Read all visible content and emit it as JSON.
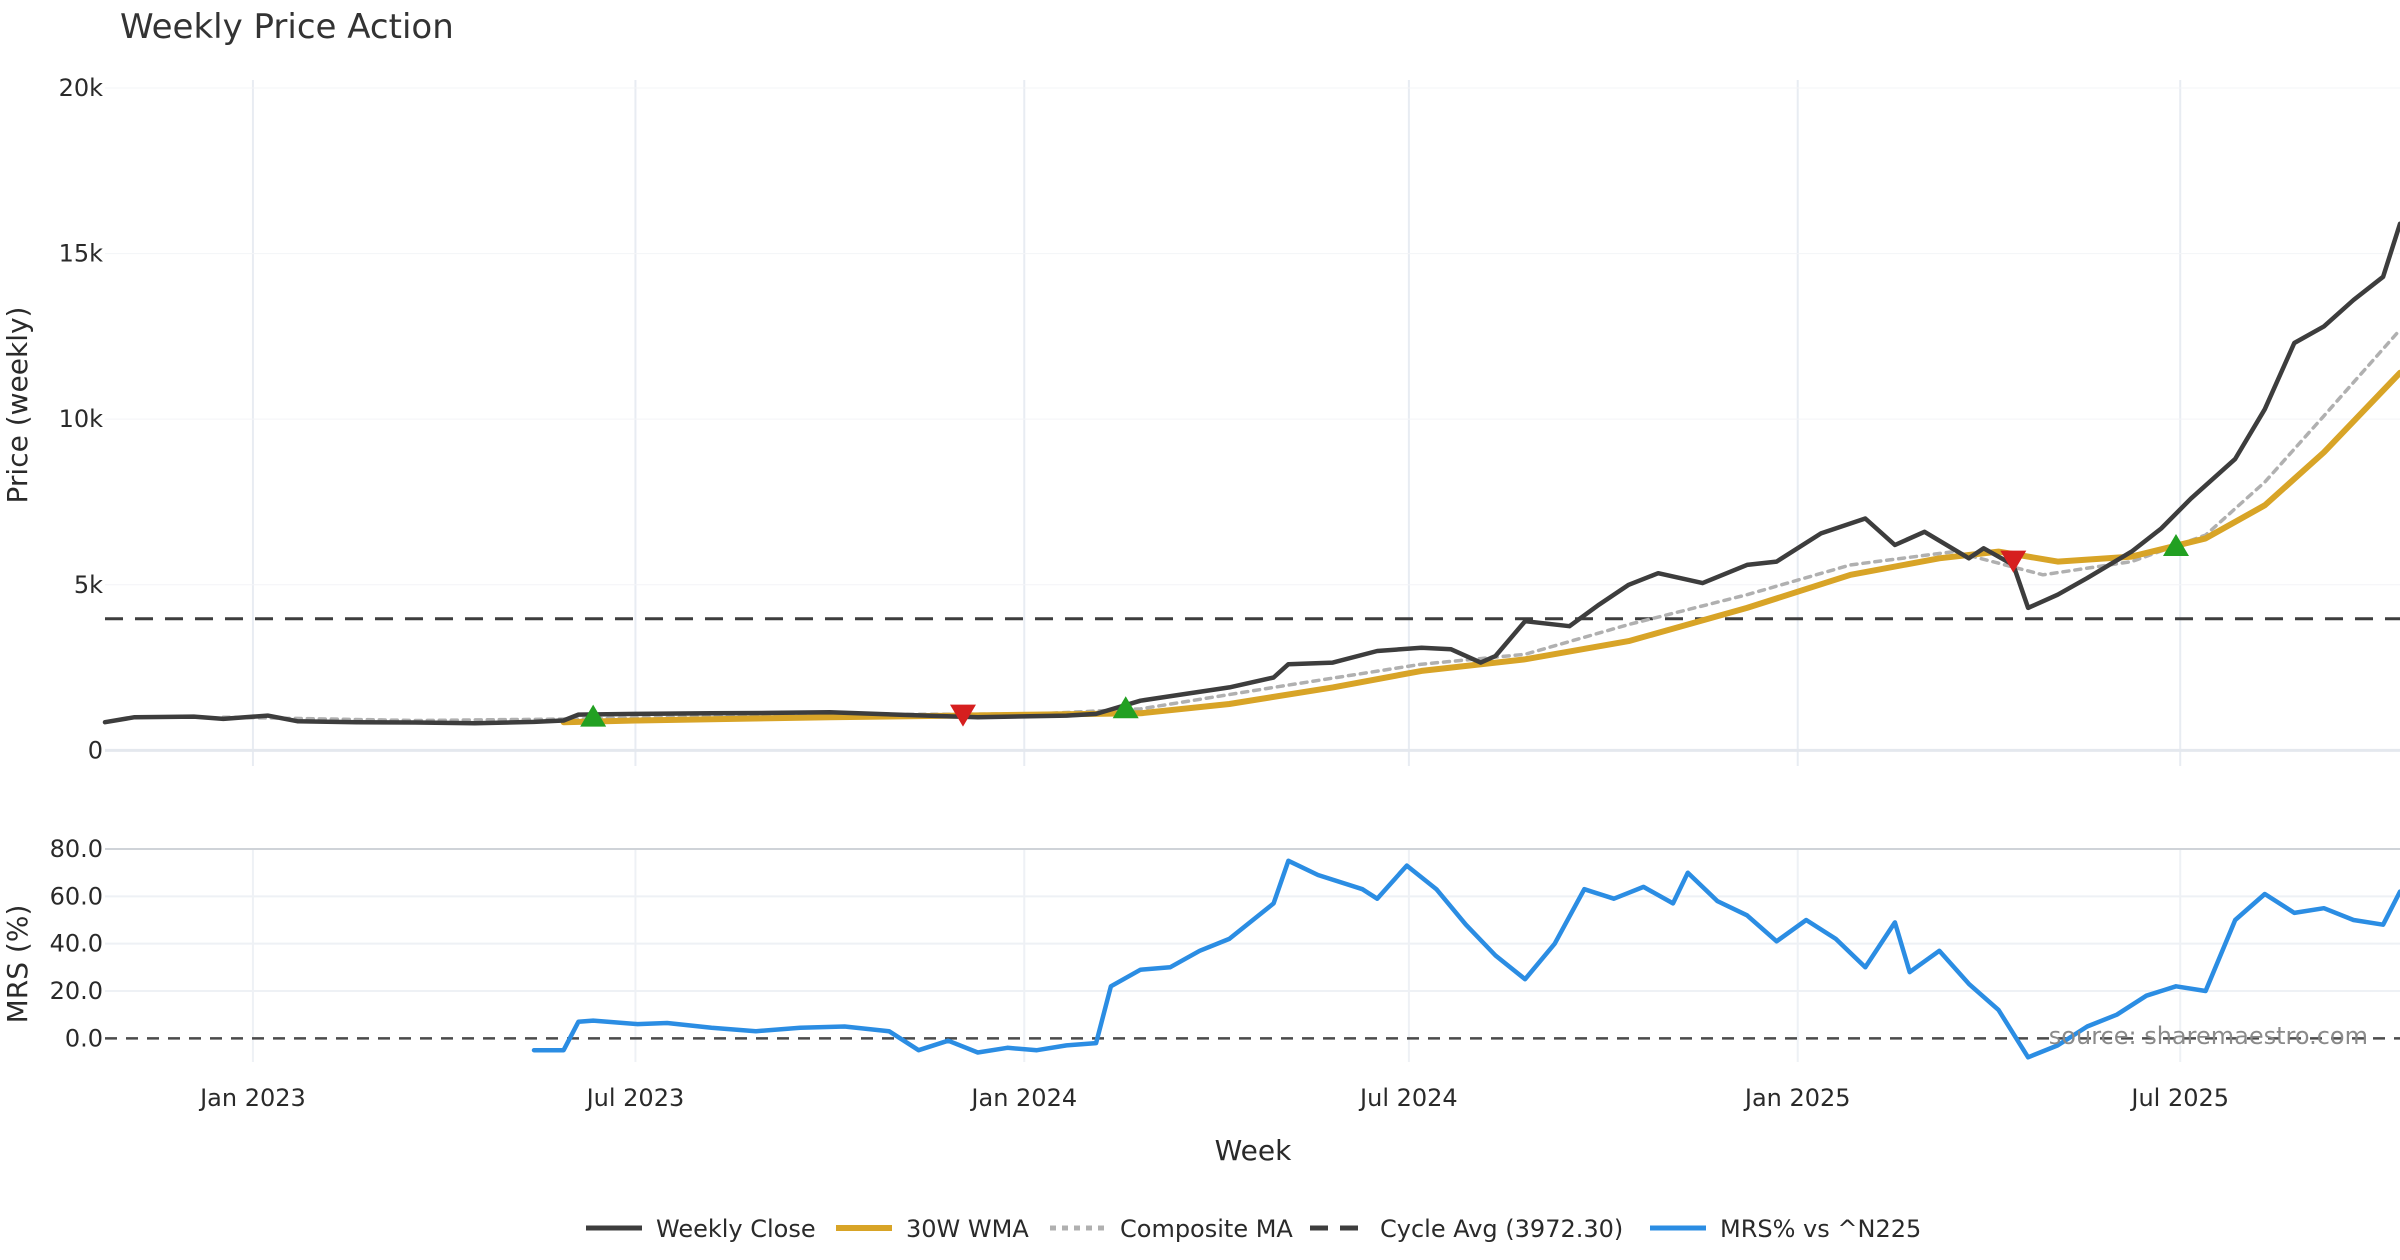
{
  "chart_data": {
    "type": "line",
    "title": "Weekly Price Action",
    "xlabel": "Week",
    "x_ticks": [
      "Jan 2023",
      "Jul 2023",
      "Jan 2024",
      "Jul 2024",
      "Jan 2025",
      "Jul 2025"
    ],
    "x_tick_dates": [
      "2023-01-01",
      "2023-07-01",
      "2024-01-01",
      "2024-07-01",
      "2025-01-01",
      "2025-07-01"
    ],
    "x_range": [
      "2022-10-23",
      "2025-10-13"
    ],
    "grid": true,
    "legend_position": "bottom",
    "source_text": "source: sharemaestro.com",
    "price_panel": {
      "ylabel": "Price (weekly)",
      "ylim": [
        -50,
        20000
      ],
      "y_ticks": [
        0,
        5000,
        10000,
        15000,
        20000
      ],
      "y_tick_labels": [
        "0",
        "5k",
        "10k",
        "15k",
        "20k"
      ]
    },
    "mrs_panel": {
      "ylabel": "MRS (%)",
      "ylim": [
        -10,
        80
      ],
      "y_ticks": [
        0,
        20,
        40,
        60,
        80
      ],
      "y_tick_labels": [
        "0.0",
        "20.0",
        "40.0",
        "60.0",
        "80.0"
      ]
    },
    "series": [
      {
        "name": "Weekly Close",
        "panel": "price",
        "color": "#3d3d3d",
        "style": "solid",
        "points": [
          [
            "2022-10-23",
            850
          ],
          [
            "2022-11-06",
            1000
          ],
          [
            "2022-12-04",
            1020
          ],
          [
            "2022-12-18",
            950
          ],
          [
            "2023-01-08",
            1050
          ],
          [
            "2023-01-22",
            880
          ],
          [
            "2023-02-19",
            850
          ],
          [
            "2023-03-19",
            840
          ],
          [
            "2023-04-16",
            820
          ],
          [
            "2023-05-14",
            860
          ],
          [
            "2023-05-28",
            900
          ],
          [
            "2023-06-04",
            1080
          ],
          [
            "2023-07-02",
            1100
          ],
          [
            "2023-08-06",
            1120
          ],
          [
            "2023-09-03",
            1130
          ],
          [
            "2023-10-01",
            1150
          ],
          [
            "2023-11-05",
            1070
          ],
          [
            "2023-12-10",
            1000
          ],
          [
            "2024-01-21",
            1050
          ],
          [
            "2024-02-04",
            1100
          ],
          [
            "2024-02-25",
            1500
          ],
          [
            "2024-03-17",
            1700
          ],
          [
            "2024-04-07",
            1900
          ],
          [
            "2024-04-28",
            2200
          ],
          [
            "2024-05-05",
            2600
          ],
          [
            "2024-05-26",
            2650
          ],
          [
            "2024-06-16",
            3000
          ],
          [
            "2024-07-07",
            3100
          ],
          [
            "2024-07-21",
            3050
          ],
          [
            "2024-08-04",
            2650
          ],
          [
            "2024-08-11",
            2850
          ],
          [
            "2024-08-25",
            3900
          ],
          [
            "2024-09-15",
            3750
          ],
          [
            "2024-09-29",
            4400
          ],
          [
            "2024-10-13",
            5000
          ],
          [
            "2024-10-27",
            5350
          ],
          [
            "2024-11-17",
            5050
          ],
          [
            "2024-12-08",
            5600
          ],
          [
            "2024-12-22",
            5700
          ],
          [
            "2025-01-12",
            6550
          ],
          [
            "2025-02-02",
            7000
          ],
          [
            "2025-02-16",
            6200
          ],
          [
            "2025-03-02",
            6600
          ],
          [
            "2025-03-23",
            5800
          ],
          [
            "2025-03-30",
            6100
          ],
          [
            "2025-04-13",
            5600
          ],
          [
            "2025-04-20",
            4300
          ],
          [
            "2025-05-04",
            4700
          ],
          [
            "2025-05-18",
            5200
          ],
          [
            "2025-06-08",
            6000
          ],
          [
            "2025-06-22",
            6700
          ],
          [
            "2025-07-06",
            7600
          ],
          [
            "2025-07-27",
            8800
          ],
          [
            "2025-08-10",
            10300
          ],
          [
            "2025-08-24",
            12300
          ],
          [
            "2025-09-07",
            12800
          ],
          [
            "2025-09-21",
            13600
          ],
          [
            "2025-10-05",
            14300
          ],
          [
            "2025-10-13",
            15900
          ]
        ]
      },
      {
        "name": "30W WMA",
        "panel": "price",
        "color": "#d8a427",
        "style": "solid",
        "points": [
          [
            "2023-05-28",
            850
          ],
          [
            "2023-07-02",
            900
          ],
          [
            "2023-10-01",
            1000
          ],
          [
            "2024-01-07",
            1080
          ],
          [
            "2024-02-25",
            1120
          ],
          [
            "2024-04-07",
            1400
          ],
          [
            "2024-05-26",
            1900
          ],
          [
            "2024-07-07",
            2400
          ],
          [
            "2024-08-25",
            2750
          ],
          [
            "2024-10-13",
            3300
          ],
          [
            "2024-12-08",
            4300
          ],
          [
            "2025-01-26",
            5300
          ],
          [
            "2025-03-09",
            5800
          ],
          [
            "2025-04-06",
            6000
          ],
          [
            "2025-05-04",
            5700
          ],
          [
            "2025-06-08",
            5850
          ],
          [
            "2025-07-13",
            6400
          ],
          [
            "2025-08-10",
            7400
          ],
          [
            "2025-09-07",
            9000
          ],
          [
            "2025-10-13",
            11400
          ]
        ]
      },
      {
        "name": "Composite MA",
        "panel": "price",
        "color": "#b0b0b0",
        "style": "dotted",
        "points": [
          [
            "2022-12-18",
            1000
          ],
          [
            "2023-03-19",
            900
          ],
          [
            "2023-06-04",
            950
          ],
          [
            "2023-10-01",
            1080
          ],
          [
            "2024-01-07",
            1100
          ],
          [
            "2024-02-25",
            1250
          ],
          [
            "2024-04-28",
            1900
          ],
          [
            "2024-07-07",
            2600
          ],
          [
            "2024-08-25",
            2900
          ],
          [
            "2024-10-13",
            3800
          ],
          [
            "2024-12-08",
            4700
          ],
          [
            "2025-01-26",
            5600
          ],
          [
            "2025-03-16",
            6000
          ],
          [
            "2025-04-27",
            5300
          ],
          [
            "2025-06-08",
            5700
          ],
          [
            "2025-07-13",
            6500
          ],
          [
            "2025-08-10",
            8100
          ],
          [
            "2025-09-07",
            10100
          ],
          [
            "2025-10-13",
            12700
          ]
        ]
      },
      {
        "name": "Cycle Avg (3972.30)",
        "panel": "price",
        "color": "#3d3d3d",
        "style": "dashed",
        "constant": 3972.3
      },
      {
        "name": "MRS% vs ^N225",
        "panel": "mrs",
        "color": "#2b8de3",
        "style": "solid",
        "points": [
          [
            "2023-05-14",
            -5
          ],
          [
            "2023-05-28",
            -5
          ],
          [
            "2023-06-04",
            7
          ],
          [
            "2023-06-11",
            7.5
          ],
          [
            "2023-07-02",
            6
          ],
          [
            "2023-07-16",
            6.5
          ],
          [
            "2023-08-06",
            4.5
          ],
          [
            "2023-08-27",
            3
          ],
          [
            "2023-09-17",
            4.5
          ],
          [
            "2023-10-08",
            5
          ],
          [
            "2023-10-29",
            3
          ],
          [
            "2023-11-12",
            -5
          ],
          [
            "2023-11-26",
            -1
          ],
          [
            "2023-12-10",
            -6
          ],
          [
            "2023-12-24",
            -4
          ],
          [
            "2024-01-07",
            -5
          ],
          [
            "2024-01-21",
            -3
          ],
          [
            "2024-02-04",
            -2
          ],
          [
            "2024-02-11",
            22
          ],
          [
            "2024-02-25",
            29
          ],
          [
            "2024-03-10",
            30
          ],
          [
            "2024-03-24",
            37
          ],
          [
            "2024-04-07",
            42
          ],
          [
            "2024-04-28",
            57
          ],
          [
            "2024-05-05",
            75
          ],
          [
            "2024-05-19",
            69
          ],
          [
            "2024-06-09",
            63
          ],
          [
            "2024-06-16",
            59
          ],
          [
            "2024-06-30",
            73
          ],
          [
            "2024-07-14",
            63
          ],
          [
            "2024-07-28",
            48
          ],
          [
            "2024-08-11",
            35
          ],
          [
            "2024-08-25",
            25
          ],
          [
            "2024-09-08",
            40
          ],
          [
            "2024-09-22",
            63
          ],
          [
            "2024-10-06",
            59
          ],
          [
            "2024-10-20",
            64
          ],
          [
            "2024-11-03",
            57
          ],
          [
            "2024-11-10",
            70
          ],
          [
            "2024-11-24",
            58
          ],
          [
            "2024-12-08",
            52
          ],
          [
            "2024-12-22",
            41
          ],
          [
            "2025-01-05",
            50
          ],
          [
            "2025-01-19",
            42
          ],
          [
            "2025-02-02",
            30
          ],
          [
            "2025-02-16",
            49
          ],
          [
            "2025-02-23",
            28
          ],
          [
            "2025-03-09",
            37
          ],
          [
            "2025-03-23",
            23
          ],
          [
            "2025-04-06",
            12
          ],
          [
            "2025-04-20",
            -8
          ],
          [
            "2025-05-04",
            -3
          ],
          [
            "2025-05-18",
            5
          ],
          [
            "2025-06-01",
            10
          ],
          [
            "2025-06-15",
            18
          ],
          [
            "2025-06-29",
            22
          ],
          [
            "2025-07-13",
            20
          ],
          [
            "2025-07-27",
            50
          ],
          [
            "2025-08-10",
            61
          ],
          [
            "2025-08-24",
            53
          ],
          [
            "2025-09-07",
            55
          ],
          [
            "2025-09-21",
            50
          ],
          [
            "2025-10-05",
            48
          ],
          [
            "2025-10-13",
            62
          ]
        ]
      }
    ],
    "signals": [
      {
        "type": "buy",
        "date": "2023-06-11",
        "value": 1050,
        "color": "#22a022"
      },
      {
        "type": "sell",
        "date": "2023-12-03",
        "value": 1050,
        "color": "#d61f1f"
      },
      {
        "type": "buy",
        "date": "2024-02-18",
        "value": 1300,
        "color": "#22a022"
      },
      {
        "type": "sell",
        "date": "2025-04-13",
        "value": 5700,
        "color": "#d61f1f"
      },
      {
        "type": "buy",
        "date": "2025-06-29",
        "value": 6200,
        "color": "#22a022"
      }
    ]
  }
}
